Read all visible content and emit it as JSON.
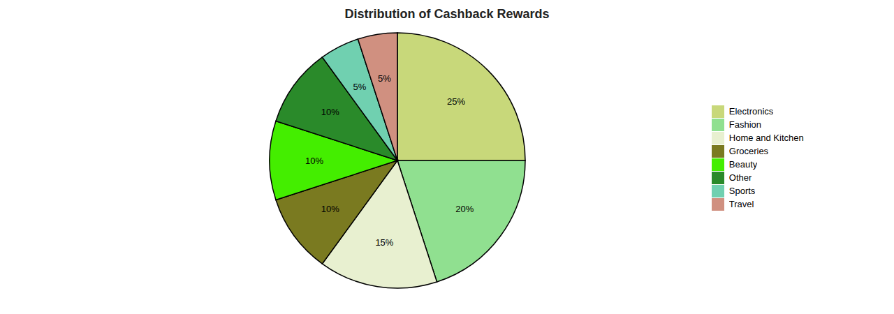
{
  "chart_data": {
    "type": "pie",
    "title": "Distribution of Cashback Rewards",
    "categories": [
      "Electronics",
      "Fashion",
      "Home and Kitchen",
      "Groceries",
      "Beauty",
      "Other",
      "Sports",
      "Travel"
    ],
    "values": [
      25,
      20,
      15,
      10,
      10,
      10,
      5,
      5
    ],
    "value_labels": [
      "25%",
      "20%",
      "15%",
      "10%",
      "10%",
      "10%",
      "5%",
      "5%"
    ],
    "colors": [
      "#c8d87a",
      "#90e090",
      "#e8f0d0",
      "#7a7a20",
      "#44ee00",
      "#2a8a2a",
      "#70d0b0",
      "#d09080"
    ],
    "data_labels": true,
    "legend": "right"
  }
}
